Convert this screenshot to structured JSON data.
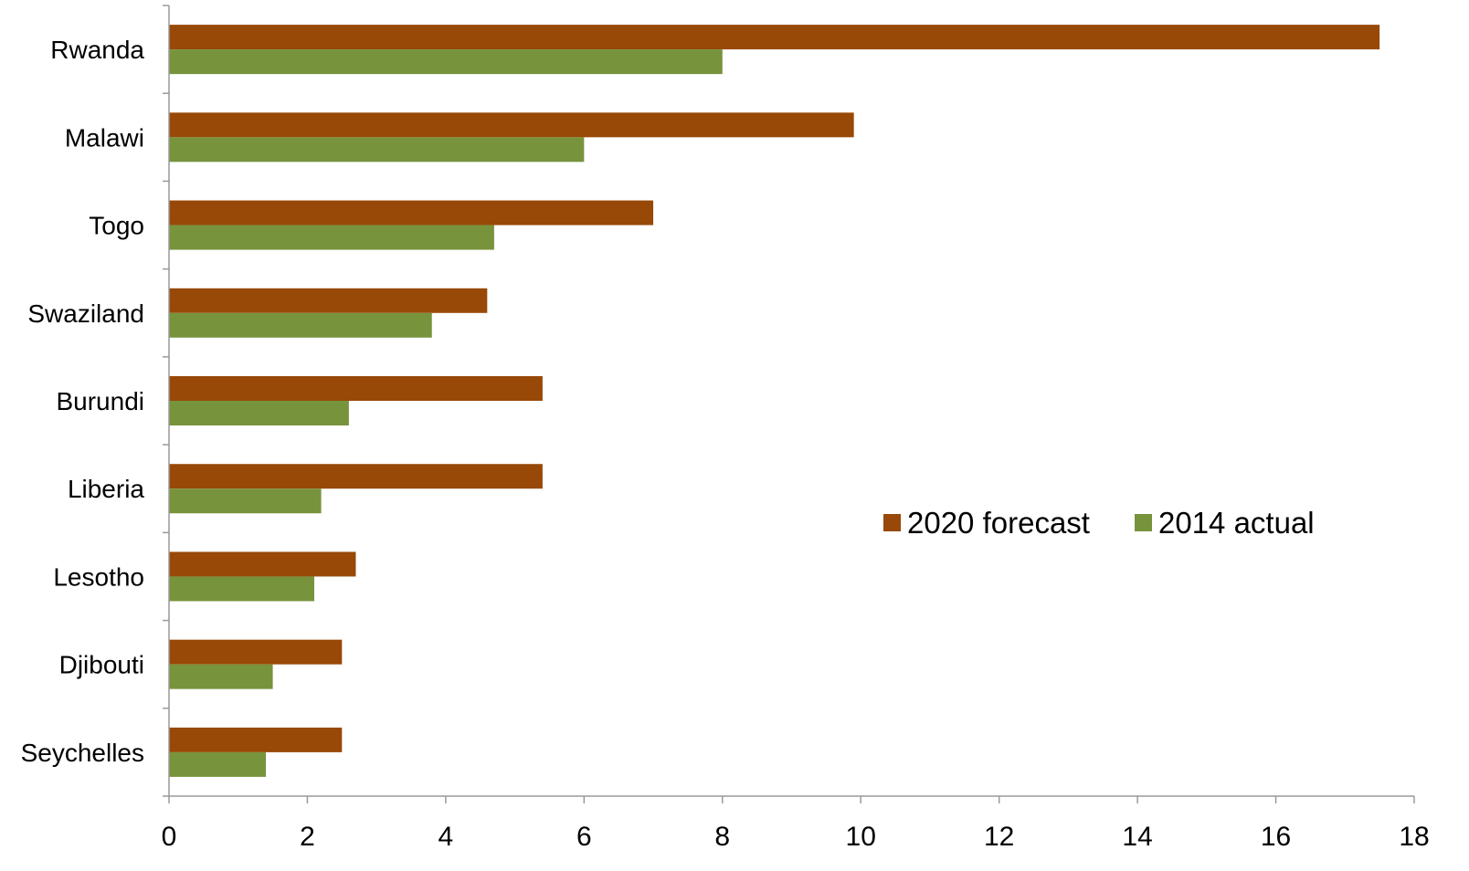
{
  "chart_data": {
    "type": "bar",
    "orientation": "horizontal",
    "title": "",
    "xlabel": "",
    "ylabel": "",
    "xlim": [
      0,
      18
    ],
    "x_ticks": [
      0,
      2,
      4,
      6,
      8,
      10,
      12,
      14,
      16,
      18
    ],
    "grid": false,
    "legend_position": "middle-right",
    "categories": [
      "Rwanda",
      "Malawi",
      "Togo",
      "Swaziland",
      "Burundi",
      "Liberia",
      "Lesotho",
      "Djibouti",
      "Seychelles"
    ],
    "series": [
      {
        "name": "2020 forecast",
        "color": "#984807",
        "values": [
          17.5,
          9.9,
          7.0,
          4.6,
          5.4,
          5.4,
          2.7,
          2.5,
          2.5
        ]
      },
      {
        "name": "2014 actual",
        "color": "#77933C",
        "values": [
          8.0,
          6.0,
          4.7,
          3.8,
          2.6,
          2.2,
          2.1,
          1.5,
          1.4
        ]
      }
    ]
  }
}
